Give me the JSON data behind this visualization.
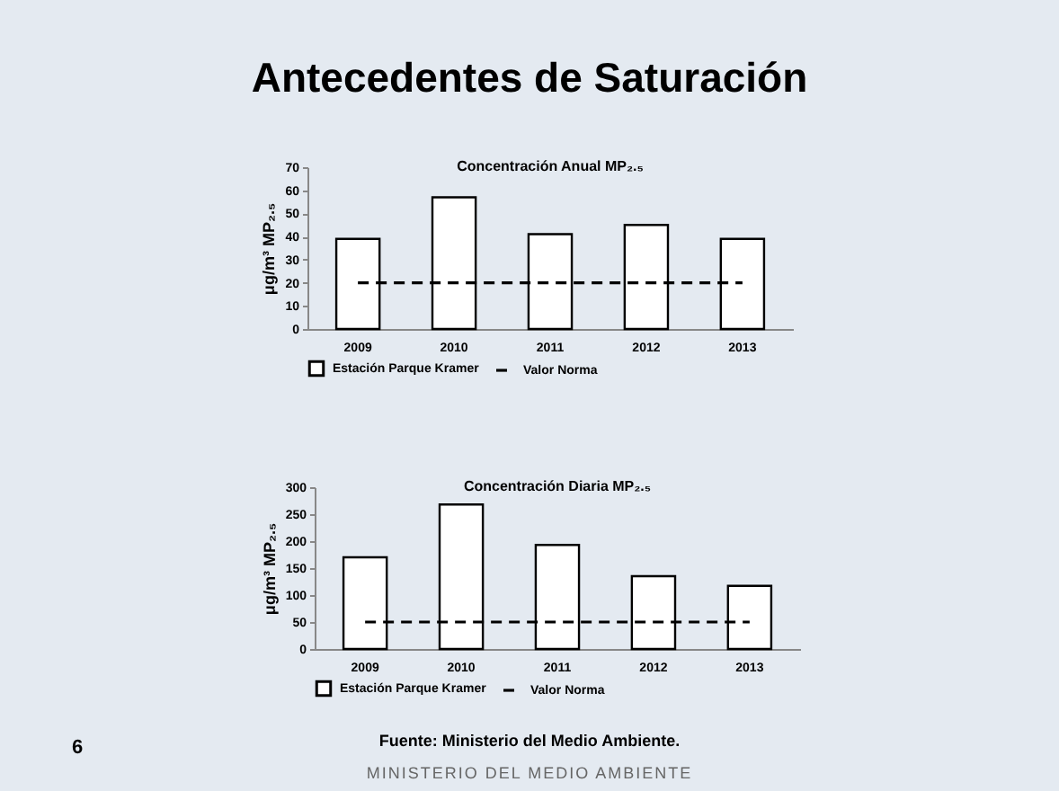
{
  "chart_data": [
    {
      "type": "other",
      "title": "Antecedentes de Saturación",
      "annotations": [
        "6",
        "MINISTERIO DEL MEDIO AMBIENTE"
      ]
    },
    {
      "type": "bar",
      "title": "Concentración Anual MP₂.₅",
      "ylabel": "μg/m³ MP₂.₅",
      "categories": [
        "2009",
        "2010",
        "2011",
        "2012",
        "2013"
      ],
      "series": [
        {
          "name": "Estación Parque Kramer",
          "type": "bar",
          "color": "#ffffff",
          "values": [
            39,
            57,
            41,
            45,
            39
          ]
        },
        {
          "name": "Valor Norma",
          "type": "line",
          "color": "#000000",
          "line_style": "dashed",
          "values": [
            20,
            20,
            20,
            20,
            20
          ]
        }
      ],
      "ylim": [
        0,
        70
      ],
      "yticks": [
        0,
        10,
        20,
        30,
        40,
        50,
        60,
        70
      ],
      "grid": false,
      "legend": "bottom"
    },
    {
      "type": "bar",
      "title": "Concentración Diaria MP₂.₅",
      "ylabel": "μg/m³ MP₂.₅",
      "categories": [
        "2009",
        "2010",
        "2011",
        "2012",
        "2013"
      ],
      "series": [
        {
          "name": "Estación Parque Kramer",
          "type": "bar",
          "color": "#ffffff",
          "values": [
            170,
            268,
            193,
            135,
            117
          ]
        },
        {
          "name": "Valor Norma",
          "type": "line",
          "color": "#000000",
          "line_style": "dashed",
          "values": [
            50,
            50,
            50,
            50,
            50
          ]
        }
      ],
      "ylim": [
        0,
        300
      ],
      "yticks": [
        0,
        50,
        100,
        150,
        200,
        250,
        300
      ],
      "grid": false,
      "legend": "bottom",
      "annotations": [
        "Fuente: Ministerio del Medio Ambiente."
      ]
    }
  ]
}
